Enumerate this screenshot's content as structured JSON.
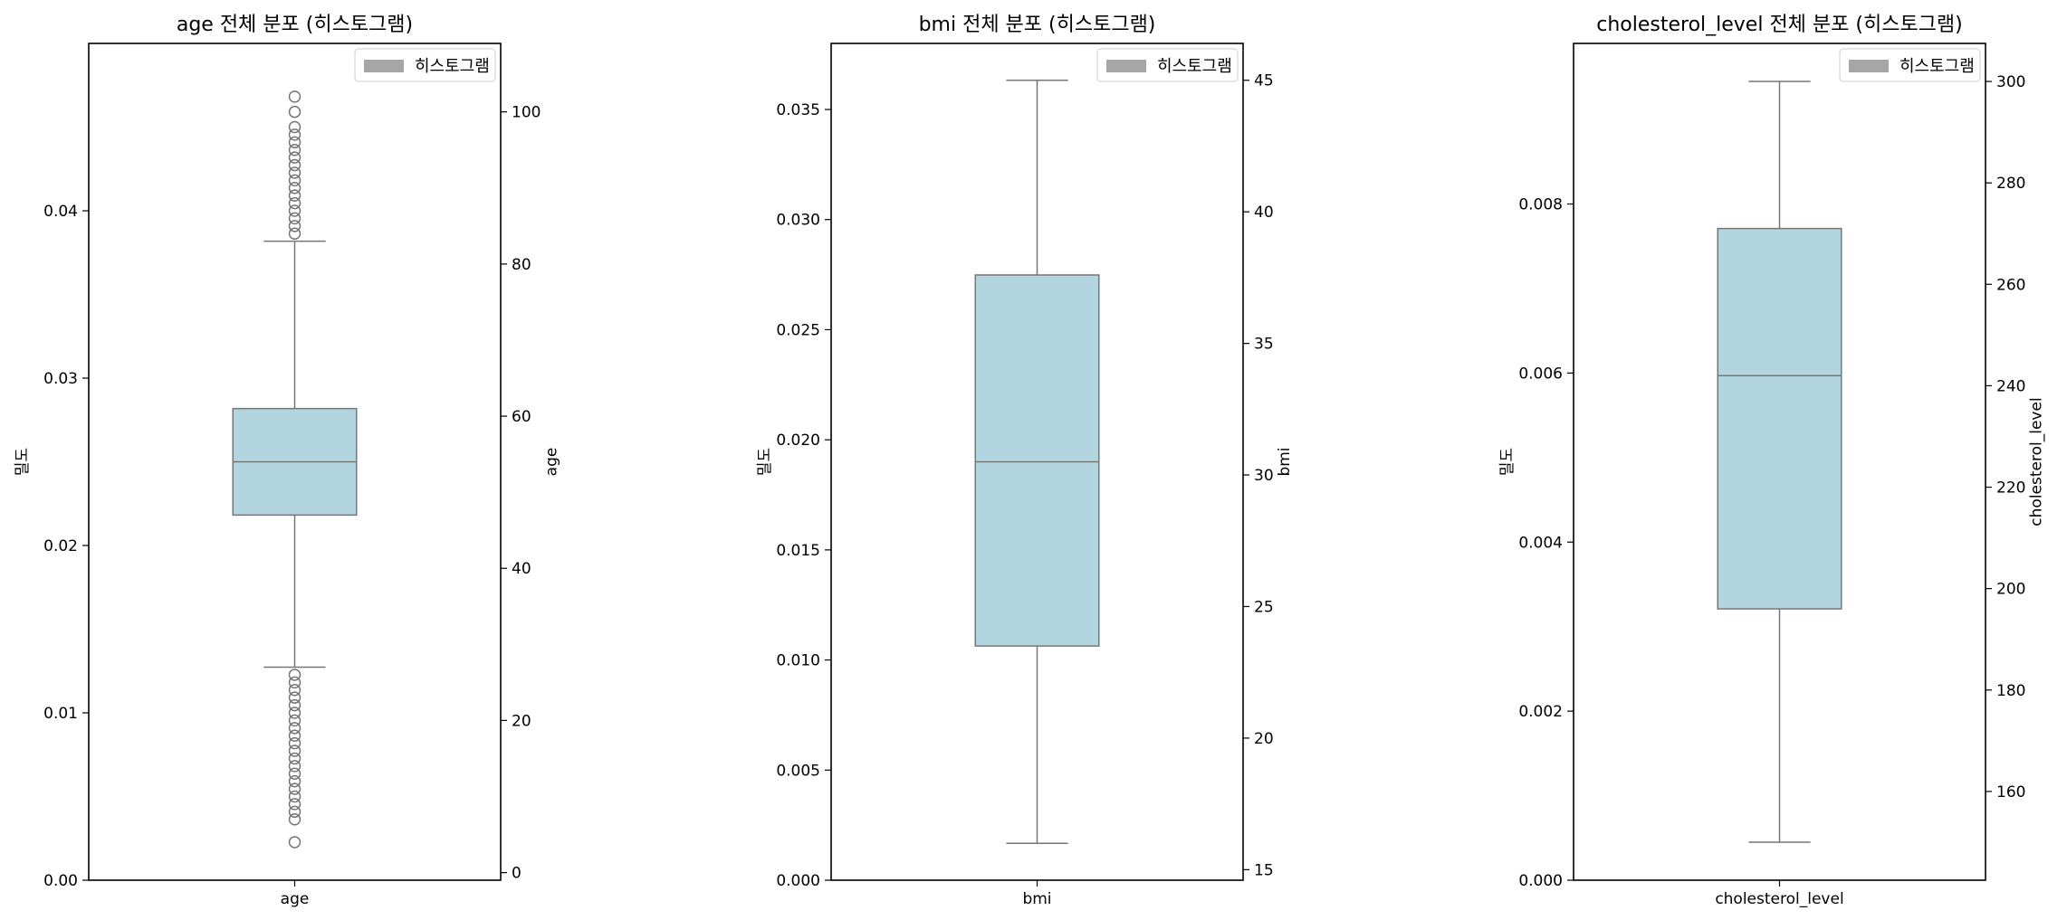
{
  "chart_data": [
    {
      "type": "box",
      "title": "age 전체 분포 (히스토그램)",
      "xlabel": "age",
      "ylabel_left": "밀도",
      "ylabel_right": "age",
      "category": "age",
      "legend": [
        "히스토그램"
      ],
      "legend_position": "top-right",
      "left_axis": {
        "lim": [
          0,
          0.05
        ],
        "ticks": [
          "0.00",
          "0.01",
          "0.02",
          "0.03",
          "0.04"
        ]
      },
      "right_axis": {
        "lim": [
          -1,
          109
        ],
        "ticks": [
          "0",
          "20",
          "40",
          "60",
          "80",
          "100"
        ]
      },
      "box": {
        "whisker_low": 27,
        "q1": 47,
        "median": 54,
        "q3": 61,
        "whisker_high": 83
      },
      "outliers": [
        4,
        7,
        8,
        9,
        10,
        11,
        12,
        13,
        14,
        15,
        16,
        17,
        18,
        19,
        20,
        21,
        22,
        23,
        24,
        25,
        26,
        84,
        85,
        86,
        87,
        88,
        89,
        90,
        91,
        92,
        93,
        94,
        95,
        96,
        97,
        98,
        100,
        102
      ]
    },
    {
      "type": "box",
      "title": "bmi 전체 분포 (히스토그램)",
      "xlabel": "bmi",
      "ylabel_left": "밀도",
      "ylabel_right": "bmi",
      "category": "bmi",
      "legend": [
        "히스토그램"
      ],
      "legend_position": "top-right",
      "left_axis": {
        "lim": [
          0,
          0.038
        ],
        "ticks": [
          "0.000",
          "0.005",
          "0.010",
          "0.015",
          "0.020",
          "0.025",
          "0.030",
          "0.035"
        ]
      },
      "right_axis": {
        "lim": [
          14.6,
          46.4
        ],
        "ticks": [
          "15",
          "20",
          "25",
          "30",
          "35",
          "40",
          "45"
        ]
      },
      "box": {
        "whisker_low": 16,
        "q1": 23.5,
        "median": 30.5,
        "q3": 37.6,
        "whisker_high": 45
      },
      "outliers": []
    },
    {
      "type": "box",
      "title": "cholesterol_level 전체 분포 (히스토그램)",
      "xlabel": "cholesterol_level",
      "ylabel_left": "밀도",
      "ylabel_right": "cholesterol_level",
      "category": "cholesterol_level",
      "legend": [
        "히스토그램"
      ],
      "legend_position": "top-right",
      "left_axis": {
        "lim": [
          0,
          0.0099
        ],
        "ticks": [
          "0.000",
          "0.002",
          "0.004",
          "0.006",
          "0.008"
        ]
      },
      "right_axis": {
        "lim": [
          142.5,
          307.5
        ],
        "ticks": [
          "160",
          "180",
          "200",
          "220",
          "240",
          "260",
          "280",
          "300"
        ]
      },
      "box": {
        "whisker_low": 150,
        "q1": 196,
        "median": 242,
        "q3": 271,
        "whisker_high": 300
      },
      "outliers": []
    }
  ],
  "colors": {
    "box_fill": "#b3d5e0",
    "box_edge": "#767676",
    "legend_patch": "#a6a6a6",
    "axes": "#000000"
  }
}
